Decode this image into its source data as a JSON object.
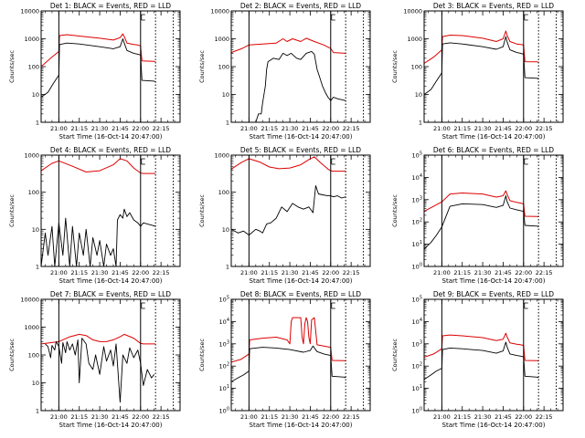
{
  "figure": {
    "x_tick_labels": [
      "21:00",
      "21:15",
      "21:30",
      "21:45",
      "22:00",
      "22:15"
    ],
    "x_tick_minutes": [
      0,
      15,
      30,
      45,
      60,
      75
    ],
    "x_range_minutes": [
      -13,
      89
    ],
    "xlabel": "Start Time (16-Oct-14 20:47:00)",
    "ylabel": "Counts/sec",
    "series_colors": {
      "black": "#000000",
      "red": "#dd0000"
    }
  },
  "chart_data": [
    {
      "id": "det1",
      "type": "line",
      "title": "Det 1: BLACK = Events, RED = LLD",
      "ylim": [
        1,
        10000
      ],
      "y_scale": "log",
      "tick_style": "plain",
      "x_unit": "minutes after 21:00",
      "vlines": [
        0,
        60,
        71,
        84
      ],
      "series": [
        {
          "color": "red",
          "x": [
            -13,
            -6,
            0,
            0.5,
            6,
            15,
            30,
            40,
            45,
            47,
            48,
            50,
            55,
            58,
            60,
            61,
            70,
            71
          ],
          "y": [
            100,
            200,
            350,
            1300,
            1400,
            1250,
            1050,
            900,
            1100,
            1500,
            1200,
            700,
            620,
            600,
            550,
            160,
            155,
            150
          ]
        },
        {
          "color": "black",
          "x": [
            -13,
            -8,
            -4,
            0,
            0.5,
            6,
            15,
            30,
            40,
            45,
            47,
            48,
            50,
            55,
            58,
            60,
            61,
            70,
            71
          ],
          "y": [
            8,
            12,
            25,
            50,
            620,
            700,
            650,
            520,
            440,
            520,
            1000,
            700,
            380,
            300,
            280,
            260,
            32,
            30,
            28
          ]
        }
      ]
    },
    {
      "id": "det2",
      "type": "line",
      "title": "Det 2: BLACK = Events, RED = LLD",
      "ylim": [
        1,
        10000
      ],
      "y_scale": "log",
      "tick_style": "plain",
      "x_unit": "minutes after 21:00",
      "vlines": [
        0,
        60,
        71,
        84
      ],
      "series": [
        {
          "color": "red",
          "x": [
            -13,
            -5,
            0,
            10,
            20,
            25,
            28,
            32,
            38,
            42,
            48,
            55,
            60,
            62,
            71
          ],
          "y": [
            320,
            450,
            600,
            650,
            700,
            1000,
            800,
            1000,
            800,
            1050,
            800,
            600,
            450,
            320,
            300
          ]
        },
        {
          "color": "black",
          "x": [
            5,
            7,
            9,
            10,
            12,
            13,
            14,
            18,
            22,
            25,
            28,
            31,
            35,
            38,
            42,
            46,
            48,
            50,
            52,
            54,
            56,
            58,
            60,
            62,
            65,
            71
          ],
          "y": [
            1,
            2,
            2,
            5,
            20,
            80,
            150,
            200,
            180,
            300,
            250,
            300,
            200,
            180,
            300,
            350,
            280,
            80,
            40,
            20,
            12,
            8,
            6,
            8,
            7,
            6
          ]
        }
      ]
    },
    {
      "id": "det3",
      "type": "line",
      "title": "Det 3: BLACK = Events, RED = LLD",
      "ylim": [
        1,
        10000
      ],
      "y_scale": "log",
      "tick_style": "plain",
      "x_unit": "minutes after 21:00",
      "vlines": [
        0,
        60,
        71,
        84
      ],
      "series": [
        {
          "color": "red",
          "x": [
            -13,
            -6,
            0,
            0.5,
            6,
            15,
            30,
            40,
            45,
            47,
            48,
            50,
            55,
            58,
            60,
            61,
            70,
            71
          ],
          "y": [
            130,
            220,
            400,
            1200,
            1350,
            1300,
            1050,
            800,
            1000,
            1900,
            1300,
            800,
            650,
            620,
            600,
            150,
            148,
            145
          ]
        },
        {
          "color": "black",
          "x": [
            -13,
            -8,
            -4,
            0,
            0.5,
            6,
            15,
            30,
            40,
            45,
            47,
            48,
            50,
            55,
            58,
            60,
            61,
            70,
            71
          ],
          "y": [
            10,
            15,
            30,
            60,
            650,
            720,
            650,
            520,
            420,
            520,
            1200,
            750,
            400,
            320,
            300,
            280,
            40,
            38,
            35
          ]
        }
      ]
    },
    {
      "id": "det4",
      "type": "line",
      "title": "Det 4: BLACK = Events, RED = LLD",
      "ylim": [
        1,
        1000
      ],
      "y_scale": "log",
      "tick_style": "plain",
      "x_unit": "minutes after 21:00",
      "vlines": [
        0,
        60,
        71,
        84
      ],
      "series": [
        {
          "color": "red",
          "x": [
            -13,
            -5,
            0,
            10,
            20,
            30,
            40,
            45,
            50,
            55,
            60,
            62,
            71
          ],
          "y": [
            380,
            600,
            700,
            500,
            350,
            380,
            550,
            800,
            700,
            450,
            330,
            320,
            320
          ]
        },
        {
          "color": "black",
          "x": [
            -13,
            -10,
            -8,
            -5,
            -3,
            0,
            3,
            5,
            8,
            10,
            13,
            15,
            18,
            20,
            23,
            25,
            28,
            30,
            33,
            35,
            38,
            40,
            42,
            43,
            45,
            47,
            48,
            50,
            52,
            55,
            58,
            60,
            62,
            65,
            68,
            71
          ],
          "y": [
            1,
            8,
            2,
            12,
            1,
            15,
            2,
            20,
            1,
            12,
            1,
            8,
            2,
            10,
            1,
            6,
            2,
            5,
            1,
            4,
            2,
            3,
            1,
            18,
            25,
            20,
            35,
            22,
            28,
            18,
            15,
            12,
            15,
            14,
            13,
            12
          ]
        }
      ]
    },
    {
      "id": "det5",
      "type": "line",
      "title": "Det 5: BLACK = Events, RED = LLD",
      "ylim": [
        1,
        1000
      ],
      "y_scale": "log",
      "tick_style": "plain",
      "x_unit": "minutes after 21:00",
      "vlines": [
        0,
        60,
        71,
        84
      ],
      "series": [
        {
          "color": "red",
          "x": [
            -13,
            -5,
            0,
            8,
            15,
            22,
            30,
            38,
            45,
            48,
            52,
            58,
            60,
            62,
            71
          ],
          "y": [
            420,
            650,
            800,
            650,
            480,
            430,
            450,
            550,
            800,
            900,
            650,
            420,
            380,
            370,
            370
          ]
        },
        {
          "color": "black",
          "x": [
            -13,
            -8,
            -4,
            0,
            5,
            8,
            10,
            13,
            16,
            20,
            24,
            28,
            32,
            36,
            40,
            44,
            47,
            49,
            51,
            54,
            58,
            60,
            62,
            65,
            68,
            71
          ],
          "y": [
            10,
            8,
            9,
            7,
            10,
            9,
            8,
            14,
            15,
            20,
            40,
            30,
            50,
            40,
            35,
            40,
            28,
            150,
            90,
            85,
            80,
            80,
            75,
            80,
            70,
            75
          ]
        }
      ]
    },
    {
      "id": "det6",
      "type": "line",
      "title": "Det 6: BLACK = Events, RED = LLD",
      "ylim": [
        1,
        100000
      ],
      "y_scale": "log",
      "tick_style": "power",
      "x_unit": "minutes after 21:00",
      "vlines": [
        0,
        60,
        71,
        84
      ],
      "series": [
        {
          "color": "red",
          "x": [
            -13,
            -6,
            0,
            6,
            15,
            30,
            40,
            45,
            47,
            48,
            50,
            55,
            58,
            60,
            61,
            70,
            71
          ],
          "y": [
            300,
            500,
            800,
            1800,
            2000,
            1800,
            1300,
            1500,
            2500,
            1700,
            900,
            750,
            700,
            650,
            180,
            175,
            170
          ]
        },
        {
          "color": "black",
          "x": [
            -13,
            -8,
            -4,
            0,
            6,
            15,
            30,
            40,
            45,
            47,
            48,
            50,
            55,
            58,
            60,
            61,
            70,
            71
          ],
          "y": [
            6,
            12,
            25,
            60,
            500,
            650,
            600,
            450,
            550,
            1500,
            800,
            420,
            350,
            320,
            300,
            70,
            65,
            60
          ]
        }
      ]
    },
    {
      "id": "det7",
      "type": "line",
      "title": "Det 7: BLACK = Events, RED = LLD",
      "ylim": [
        1,
        10000
      ],
      "y_scale": "log",
      "tick_style": "plain",
      "x_unit": "minutes after 21:00",
      "vlines": [
        0,
        60,
        71,
        84
      ],
      "series": [
        {
          "color": "red",
          "x": [
            -13,
            -5,
            0,
            8,
            15,
            20,
            25,
            30,
            35,
            40,
            45,
            48,
            55,
            60,
            62,
            71
          ],
          "y": [
            250,
            280,
            300,
            450,
            550,
            500,
            350,
            300,
            300,
            350,
            450,
            550,
            400,
            260,
            250,
            250
          ]
        },
        {
          "color": "black",
          "x": [
            -10,
            -8,
            -6,
            -5,
            -3,
            -2,
            0,
            2,
            3,
            5,
            6,
            8,
            10,
            12,
            14,
            15,
            17,
            20,
            22,
            25,
            27,
            30,
            33,
            35,
            38,
            40,
            42,
            45,
            47,
            50,
            52,
            55,
            58,
            60,
            62,
            65,
            68,
            70
          ],
          "y": [
            250,
            200,
            80,
            220,
            150,
            300,
            200,
            50,
            280,
            120,
            300,
            150,
            250,
            100,
            350,
            10,
            400,
            250,
            50,
            30,
            100,
            20,
            200,
            60,
            150,
            40,
            250,
            2,
            100,
            50,
            180,
            80,
            150,
            50,
            8,
            30,
            15,
            20
          ]
        }
      ]
    },
    {
      "id": "det8",
      "type": "line",
      "title": "Det 8: BLACK = Events, RED = LLD",
      "ylim": [
        1,
        100000
      ],
      "y_scale": "log",
      "tick_style": "power",
      "x_unit": "minutes after 21:00",
      "vlines": [
        0,
        60,
        71,
        84
      ],
      "series": [
        {
          "color": "red",
          "x": [
            -13,
            -6,
            0,
            0.5,
            10,
            20,
            28,
            30,
            31,
            32,
            38,
            39,
            40,
            41,
            42,
            43,
            44,
            45,
            46,
            48,
            50,
            55,
            60,
            61,
            70,
            71
          ],
          "y": [
            150,
            200,
            350,
            1500,
            1800,
            2000,
            1500,
            1000,
            10000,
            15000,
            15000,
            2000,
            1000,
            8000,
            15000,
            10000,
            2000,
            1000,
            12000,
            15000,
            900,
            800,
            700,
            180,
            175,
            170
          ]
        },
        {
          "color": "black",
          "x": [
            -13,
            -8,
            -4,
            0,
            0.5,
            10,
            20,
            30,
            40,
            45,
            47,
            50,
            55,
            60,
            61,
            70,
            71
          ],
          "y": [
            20,
            30,
            40,
            60,
            600,
            700,
            650,
            550,
            420,
            500,
            800,
            450,
            350,
            300,
            35,
            32,
            30
          ]
        }
      ]
    },
    {
      "id": "det9",
      "type": "line",
      "title": "Det 9: BLACK = Events, RED = LLD",
      "ylim": [
        1,
        100000
      ],
      "y_scale": "log",
      "tick_style": "power",
      "x_unit": "minutes after 21:00",
      "vlines": [
        0,
        60,
        71,
        84
      ],
      "series": [
        {
          "color": "red",
          "x": [
            -13,
            -6,
            0,
            0.5,
            6,
            15,
            30,
            40,
            45,
            47,
            48,
            50,
            55,
            58,
            60,
            61,
            70,
            71
          ],
          "y": [
            250,
            350,
            600,
            2300,
            2500,
            2300,
            1900,
            1400,
            1600,
            3000,
            2000,
            1100,
            950,
            900,
            850,
            180,
            175,
            170
          ]
        },
        {
          "color": "black",
          "x": [
            -13,
            -8,
            -4,
            0,
            0.5,
            6,
            15,
            30,
            40,
            45,
            47,
            48,
            50,
            55,
            58,
            60,
            61,
            70,
            71
          ],
          "y": [
            25,
            40,
            60,
            80,
            550,
            650,
            600,
            500,
            380,
            480,
            1200,
            700,
            350,
            300,
            280,
            260,
            35,
            32,
            30
          ]
        }
      ]
    }
  ]
}
